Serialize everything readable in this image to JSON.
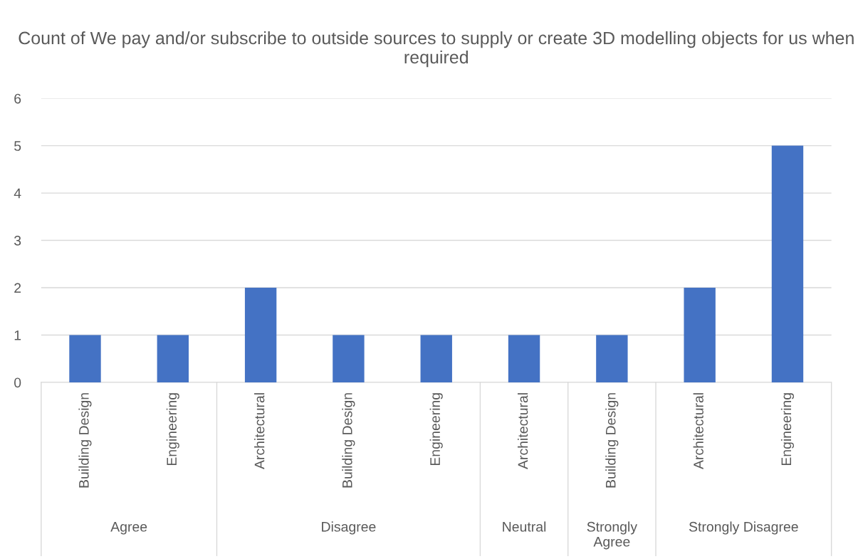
{
  "chart_data": {
    "type": "bar",
    "title": "Count of We pay and/or subscribe to outside sources to supply or create 3D modelling objects for us when required",
    "categories": [
      "Building Design",
      "Engineering",
      "Architectural",
      "Building Design",
      "Engineering",
      "Architectural",
      "Building Design",
      "Architectural",
      "Engineering"
    ],
    "values": [
      1,
      1,
      2,
      1,
      1,
      1,
      1,
      2,
      5
    ],
    "color": "#4472c4",
    "ylim": [
      0,
      6
    ],
    "yticks": [
      0,
      1,
      2,
      3,
      4,
      5,
      6
    ],
    "grid": "y",
    "legend": false,
    "annotations": [
      "Agree",
      "Disagree",
      "Neutral",
      "Strongly Agree",
      "Strongly Disagree"
    ]
  }
}
